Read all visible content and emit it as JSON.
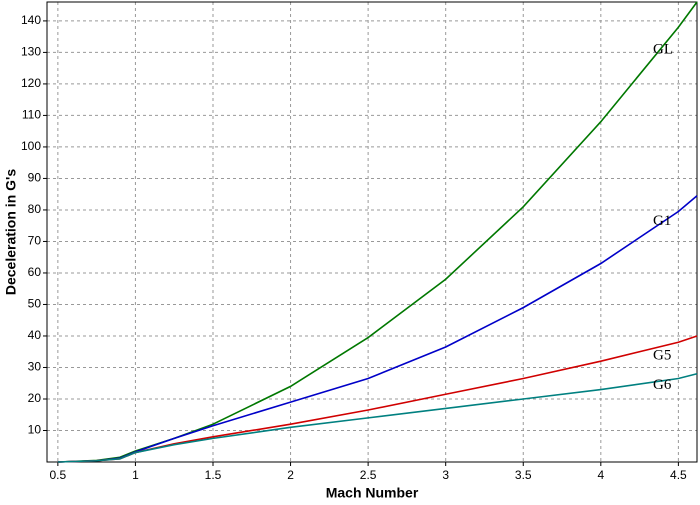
{
  "chart_data": {
    "type": "line",
    "x_label": "Mach Number",
    "y_label": "Deceleration in G's",
    "x": [
      0.5,
      0.75,
      0.9,
      1,
      1.25,
      1.5,
      2,
      2.5,
      3,
      3.5,
      4,
      4.5,
      4.62
    ],
    "series": [
      {
        "name": "GL",
        "color": "#007800",
        "values": [
          0,
          0.5,
          1.5,
          3.5,
          7.5,
          12,
          24,
          39.5,
          58,
          81,
          108,
          138,
          146
        ]
      },
      {
        "name": "G1",
        "color": "#0000c8",
        "values": [
          0,
          0.4,
          1.2,
          3.2,
          7.5,
          11.5,
          19,
          26.5,
          36.5,
          49,
          63,
          79.5,
          84.5
        ]
      },
      {
        "name": "G5",
        "color": "#d00000",
        "values": [
          0,
          0.4,
          1,
          3,
          5.8,
          8,
          12,
          16.5,
          21.5,
          26.5,
          32,
          38,
          40
        ]
      },
      {
        "name": "G6",
        "color": "#008080",
        "values": [
          0,
          0.4,
          1,
          3,
          5.5,
          7.5,
          11,
          14,
          17,
          20,
          23,
          26.5,
          28
        ]
      }
    ],
    "xlim": [
      0.43,
      4.62
    ],
    "ylim": [
      0,
      146
    ],
    "xticks": [
      0.5,
      1,
      1.5,
      2,
      2.5,
      3,
      3.5,
      4,
      4.5
    ],
    "yticks": [
      10,
      20,
      30,
      40,
      50,
      60,
      70,
      80,
      90,
      100,
      110,
      120,
      130,
      140
    ],
    "grid": true
  }
}
